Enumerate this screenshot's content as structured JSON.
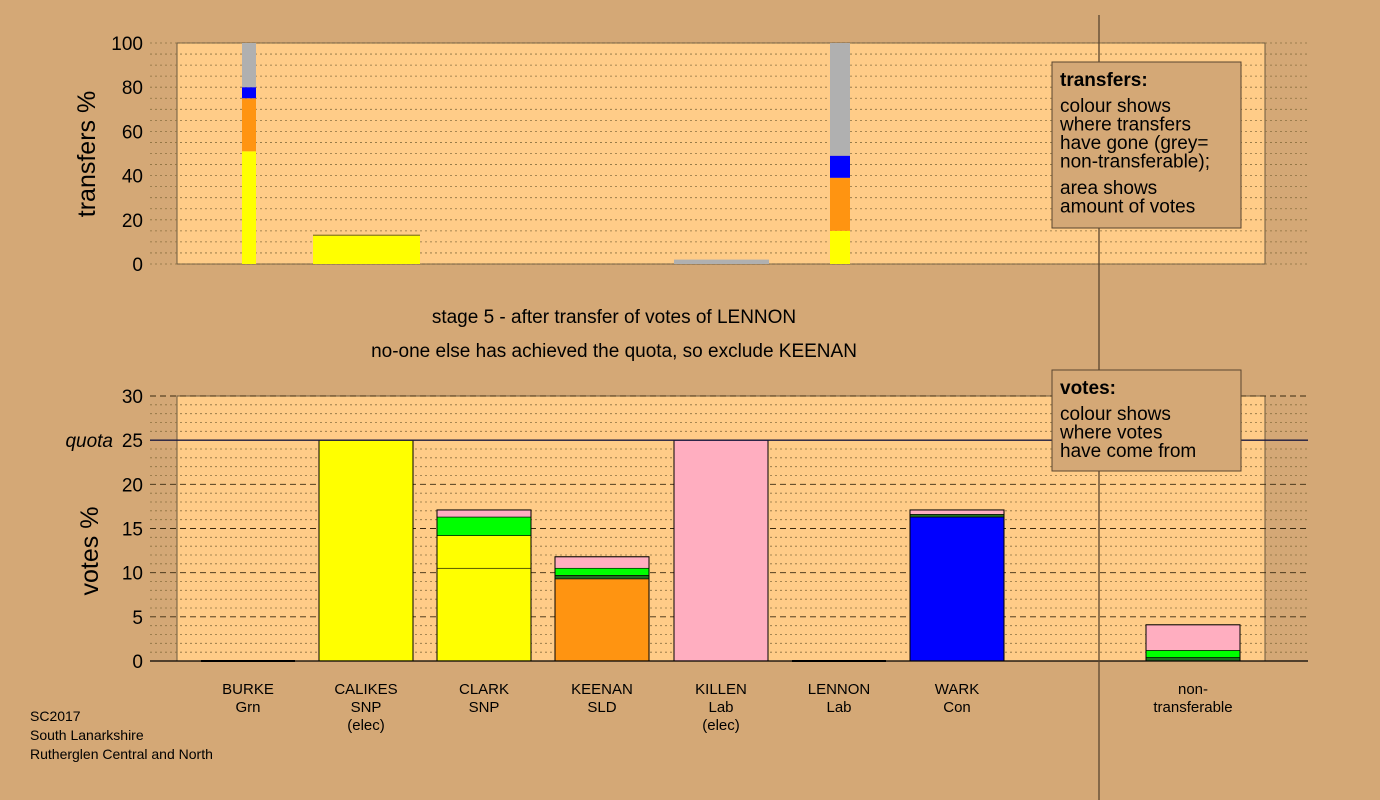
{
  "colors": {
    "background": "#d4a876",
    "plot_bg": "#ffcc88",
    "yellow": "#ffff00",
    "orange": "#ff9411",
    "blue": "#0000ff",
    "grey": "#b0b0b0",
    "pink": "#ffaec0",
    "green": "#00ff00",
    "darkgreen": "#207020"
  },
  "headings": {
    "stage": "stage 5 - after transfer of votes of LENNON",
    "action": "no-one else has achieved the quota, so exclude KEENAN"
  },
  "footer": {
    "line1": "SC2017",
    "line2": "South Lanarkshire",
    "line3": "Rutherglen Central and North"
  },
  "chart_data": [
    {
      "type": "bar",
      "ylabel": "transfers %",
      "ylim": [
        0,
        100
      ],
      "yticks": [
        0,
        20,
        40,
        60,
        80,
        100
      ],
      "legend": {
        "title": "transfers:",
        "lines": [
          "colour shows",
          "where transfers",
          "have gone (grey=",
          "non-transferable);",
          "",
          "area shows",
          "amount of votes"
        ]
      },
      "bars": [
        {
          "candidate": "BURKE",
          "segments": [
            {
              "color": "yellow",
              "value": 51
            },
            {
              "color": "orange",
              "value": 24
            },
            {
              "color": "blue",
              "value": 5
            },
            {
              "color": "grey",
              "value": 20
            }
          ]
        },
        {
          "candidate": "CALIKES",
          "segments": [
            {
              "color": "yellow",
              "value": 13
            }
          ]
        },
        {
          "candidate": "KILLEN",
          "segments": [
            {
              "color": "grey",
              "value": 2
            }
          ]
        },
        {
          "candidate": "LENNON",
          "segments": [
            {
              "color": "yellow",
              "value": 15
            },
            {
              "color": "orange",
              "value": 24
            },
            {
              "color": "blue",
              "value": 10
            },
            {
              "color": "grey",
              "value": 51
            }
          ]
        }
      ]
    },
    {
      "type": "bar",
      "ylabel": "votes %",
      "ylim": [
        0,
        30
      ],
      "yticks": [
        0,
        5,
        10,
        15,
        20,
        25,
        30
      ],
      "quota": 25,
      "quota_label": "quota",
      "legend": {
        "title": "votes:",
        "lines": [
          "colour shows",
          "where votes",
          "have come from"
        ]
      },
      "categories": [
        {
          "name": "BURKE",
          "party": "Grn",
          "note": ""
        },
        {
          "name": "CALIKES",
          "party": "SNP",
          "note": "(elec)"
        },
        {
          "name": "CLARK",
          "party": "SNP",
          "note": ""
        },
        {
          "name": "KEENAN",
          "party": "SLD",
          "note": ""
        },
        {
          "name": "KILLEN",
          "party": "Lab",
          "note": "(elec)"
        },
        {
          "name": "LENNON",
          "party": "Lab",
          "note": ""
        },
        {
          "name": "WARK",
          "party": "Con",
          "note": ""
        },
        {
          "name": "non-",
          "party": "transferable",
          "note": ""
        }
      ],
      "bars": [
        {
          "candidate": "BURKE",
          "segments": []
        },
        {
          "candidate": "CALIKES",
          "segments": [
            {
              "color": "yellow",
              "value": 25
            }
          ]
        },
        {
          "candidate": "CLARK",
          "segments": [
            {
              "color": "yellow",
              "value": 10.5
            },
            {
              "color": "yellow",
              "value": 3.7
            },
            {
              "color": "green",
              "value": 2.1
            },
            {
              "color": "pink",
              "value": 0.8
            }
          ]
        },
        {
          "candidate": "KEENAN",
          "segments": [
            {
              "color": "orange",
              "value": 9.3
            },
            {
              "color": "darkgreen",
              "value": 0.4
            },
            {
              "color": "green",
              "value": 0.8
            },
            {
              "color": "pink",
              "value": 1.3
            }
          ]
        },
        {
          "candidate": "KILLEN",
          "segments": [
            {
              "color": "pink",
              "value": 25
            }
          ]
        },
        {
          "candidate": "LENNON",
          "segments": []
        },
        {
          "candidate": "WARK",
          "segments": [
            {
              "color": "blue",
              "value": 16.3
            },
            {
              "color": "darkgreen",
              "value": 0.3
            },
            {
              "color": "pink",
              "value": 0.5
            }
          ]
        },
        {
          "candidate": "non-transferable",
          "segments": [
            {
              "color": "darkgreen",
              "value": 0.4
            },
            {
              "color": "green",
              "value": 0.8
            },
            {
              "color": "pink",
              "value": 2.9
            }
          ]
        }
      ]
    }
  ]
}
